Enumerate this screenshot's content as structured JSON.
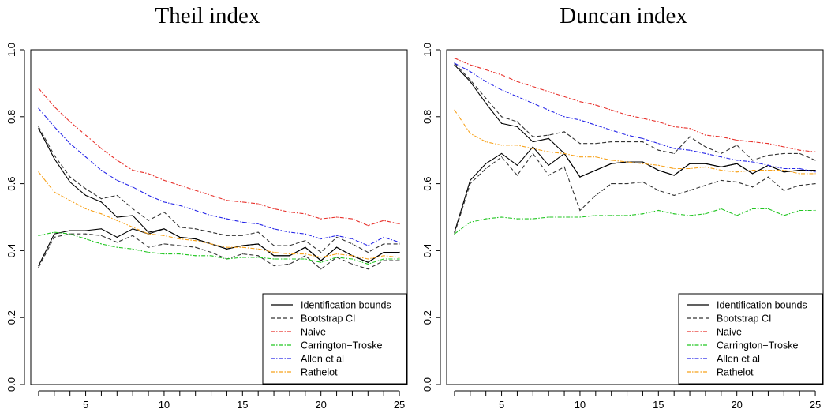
{
  "chart_data": [
    {
      "type": "line",
      "title": "Theil index",
      "xlabel": "",
      "ylabel": "",
      "xlim": [
        1.5,
        25.5
      ],
      "ylim": [
        0,
        1.0
      ],
      "x_ticks": [
        "5",
        "10",
        "15",
        "20",
        "25"
      ],
      "y_ticks": [
        "0.0",
        "0.2",
        "0.4",
        "0.6",
        "0.8",
        "1.0"
      ],
      "legend_position": "bottom-right",
      "x": [
        2,
        3,
        4,
        5,
        6,
        7,
        8,
        9,
        10,
        11,
        12,
        13,
        14,
        15,
        16,
        17,
        18,
        19,
        20,
        21,
        22,
        23,
        24,
        25
      ],
      "series": [
        {
          "name": "Identification bounds",
          "color": "#000000",
          "dash": "solid",
          "values": [
            0.765,
            0.675,
            0.605,
            0.565,
            0.545,
            0.5,
            0.505,
            0.455,
            0.465,
            0.44,
            0.435,
            0.42,
            0.405,
            0.415,
            0.42,
            0.385,
            0.385,
            0.41,
            0.37,
            0.41,
            0.385,
            0.365,
            0.395,
            0.395
          ]
        },
        {
          "name": "",
          "color": "#000000",
          "dash": "solid",
          "values": [
            0.355,
            0.45,
            0.46,
            0.46,
            0.465,
            0.44,
            0.465,
            0.45,
            0.465,
            0.44,
            0.435,
            0.42,
            0.405,
            0.415,
            0.42,
            0.385,
            0.385,
            0.41,
            0.37,
            0.41,
            0.385,
            0.365,
            0.395,
            0.395
          ]
        },
        {
          "name": "Bootstrap CI",
          "color": "#333333",
          "dash": "dashed",
          "values": [
            0.77,
            0.685,
            0.62,
            0.585,
            0.555,
            0.565,
            0.525,
            0.49,
            0.515,
            0.47,
            0.465,
            0.455,
            0.445,
            0.445,
            0.455,
            0.415,
            0.415,
            0.43,
            0.395,
            0.44,
            0.42,
            0.395,
            0.42,
            0.42
          ]
        },
        {
          "name": "",
          "color": "#333333",
          "dash": "dashed",
          "values": [
            0.35,
            0.44,
            0.45,
            0.45,
            0.445,
            0.425,
            0.445,
            0.41,
            0.42,
            0.415,
            0.41,
            0.395,
            0.375,
            0.39,
            0.385,
            0.355,
            0.36,
            0.385,
            0.345,
            0.38,
            0.36,
            0.345,
            0.37,
            0.37
          ]
        },
        {
          "name": "Naive",
          "color": "#e8312b",
          "dash": "dashdot",
          "values": [
            0.885,
            0.83,
            0.785,
            0.745,
            0.705,
            0.67,
            0.64,
            0.63,
            0.61,
            0.595,
            0.58,
            0.565,
            0.55,
            0.545,
            0.54,
            0.525,
            0.515,
            0.51,
            0.495,
            0.5,
            0.495,
            0.475,
            0.49,
            0.48
          ]
        },
        {
          "name": "Carrington−Troske",
          "color": "#22c622",
          "dash": "dashdot",
          "values": [
            0.445,
            0.455,
            0.45,
            0.435,
            0.42,
            0.41,
            0.405,
            0.395,
            0.39,
            0.39,
            0.385,
            0.385,
            0.375,
            0.38,
            0.38,
            0.375,
            0.375,
            0.375,
            0.365,
            0.38,
            0.375,
            0.36,
            0.375,
            0.375
          ]
        },
        {
          "name": "Allen et al",
          "color": "#2626e8",
          "dash": "dashdot",
          "values": [
            0.825,
            0.77,
            0.72,
            0.68,
            0.64,
            0.61,
            0.59,
            0.565,
            0.545,
            0.535,
            0.52,
            0.505,
            0.495,
            0.485,
            0.48,
            0.465,
            0.455,
            0.45,
            0.435,
            0.445,
            0.435,
            0.415,
            0.44,
            0.425
          ]
        },
        {
          "name": "Rathelot",
          "color": "#f7a21b",
          "dash": "dashdot",
          "values": [
            0.635,
            0.575,
            0.55,
            0.525,
            0.51,
            0.49,
            0.47,
            0.45,
            0.445,
            0.435,
            0.43,
            0.42,
            0.41,
            0.41,
            0.405,
            0.395,
            0.39,
            0.39,
            0.38,
            0.39,
            0.385,
            0.375,
            0.385,
            0.38
          ]
        }
      ]
    },
    {
      "type": "line",
      "title": "Duncan index",
      "xlabel": "",
      "ylabel": "",
      "xlim": [
        1.5,
        25.5
      ],
      "ylim": [
        0,
        1.0
      ],
      "x_ticks": [
        "5",
        "10",
        "15",
        "20",
        "25"
      ],
      "y_ticks": [
        "0.0",
        "0.2",
        "0.4",
        "0.6",
        "0.8",
        "1.0"
      ],
      "legend_position": "bottom-right",
      "x": [
        2,
        3,
        4,
        5,
        6,
        7,
        8,
        9,
        10,
        11,
        12,
        13,
        14,
        15,
        16,
        17,
        18,
        19,
        20,
        21,
        22,
        23,
        24,
        25
      ],
      "series": [
        {
          "name": "Identification bounds",
          "color": "#000000",
          "dash": "solid",
          "values": [
            0.955,
            0.905,
            0.84,
            0.78,
            0.77,
            0.725,
            0.735,
            0.69,
            0.62,
            0.64,
            0.66,
            0.665,
            0.665,
            0.64,
            0.625,
            0.66,
            0.66,
            0.65,
            0.66,
            0.63,
            0.655,
            0.635,
            0.64,
            0.64
          ]
        },
        {
          "name": "",
          "color": "#000000",
          "dash": "solid",
          "values": [
            0.455,
            0.61,
            0.66,
            0.69,
            0.655,
            0.71,
            0.655,
            0.69,
            0.62,
            0.64,
            0.66,
            0.665,
            0.665,
            0.64,
            0.625,
            0.66,
            0.66,
            0.65,
            0.66,
            0.63,
            0.655,
            0.635,
            0.64,
            0.64
          ]
        },
        {
          "name": "Bootstrap CI",
          "color": "#333333",
          "dash": "dashed",
          "values": [
            0.96,
            0.91,
            0.855,
            0.8,
            0.785,
            0.74,
            0.745,
            0.755,
            0.72,
            0.72,
            0.725,
            0.725,
            0.725,
            0.7,
            0.69,
            0.74,
            0.71,
            0.69,
            0.715,
            0.67,
            0.685,
            0.69,
            0.69,
            0.67
          ]
        },
        {
          "name": "",
          "color": "#333333",
          "dash": "dashed",
          "values": [
            0.45,
            0.6,
            0.645,
            0.68,
            0.625,
            0.69,
            0.625,
            0.65,
            0.52,
            0.565,
            0.6,
            0.6,
            0.605,
            0.58,
            0.565,
            0.58,
            0.595,
            0.61,
            0.605,
            0.59,
            0.62,
            0.58,
            0.595,
            0.6
          ]
        },
        {
          "name": "Naive",
          "color": "#e8312b",
          "dash": "dashdot",
          "values": [
            0.975,
            0.955,
            0.94,
            0.925,
            0.905,
            0.89,
            0.875,
            0.86,
            0.845,
            0.835,
            0.82,
            0.805,
            0.795,
            0.785,
            0.77,
            0.765,
            0.745,
            0.74,
            0.73,
            0.725,
            0.72,
            0.71,
            0.7,
            0.695
          ]
        },
        {
          "name": "Carrington−Troske",
          "color": "#22c622",
          "dash": "dashdot",
          "values": [
            0.45,
            0.485,
            0.495,
            0.5,
            0.495,
            0.495,
            0.5,
            0.5,
            0.5,
            0.505,
            0.505,
            0.505,
            0.51,
            0.52,
            0.51,
            0.505,
            0.51,
            0.525,
            0.505,
            0.525,
            0.525,
            0.505,
            0.52,
            0.52
          ]
        },
        {
          "name": "Allen et al",
          "color": "#2626e8",
          "dash": "dashdot",
          "values": [
            0.96,
            0.935,
            0.905,
            0.88,
            0.86,
            0.84,
            0.82,
            0.8,
            0.79,
            0.775,
            0.76,
            0.745,
            0.735,
            0.72,
            0.705,
            0.7,
            0.69,
            0.68,
            0.67,
            0.665,
            0.655,
            0.645,
            0.645,
            0.635
          ]
        },
        {
          "name": "Rathelot",
          "color": "#f7a21b",
          "dash": "dashdot",
          "values": [
            0.82,
            0.75,
            0.725,
            0.715,
            0.715,
            0.705,
            0.695,
            0.69,
            0.68,
            0.68,
            0.67,
            0.665,
            0.66,
            0.655,
            0.645,
            0.645,
            0.65,
            0.64,
            0.635,
            0.64,
            0.64,
            0.64,
            0.63,
            0.63
          ]
        }
      ]
    }
  ]
}
